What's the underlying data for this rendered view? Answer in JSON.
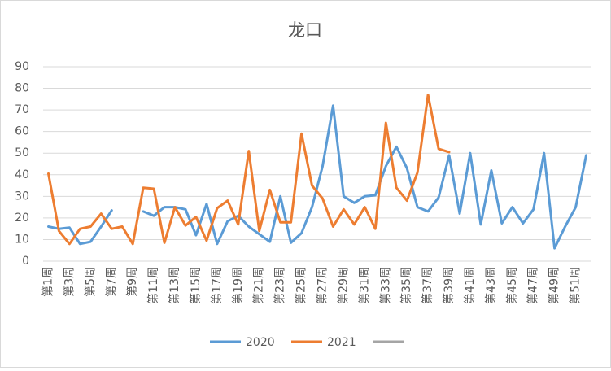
{
  "chart_data": {
    "type": "line",
    "title": "龙口",
    "categories": [
      "第1周",
      null,
      "第3周",
      null,
      "第5周",
      null,
      "第7周",
      null,
      "第9周",
      null,
      "第11周",
      null,
      "第13周",
      null,
      "第15周",
      null,
      "第17周",
      null,
      "第19周",
      null,
      "第21周",
      null,
      "第23周",
      null,
      "第25周",
      null,
      "第27周",
      null,
      "第29周",
      null,
      "第31周",
      null,
      "第33周",
      null,
      "第35周",
      null,
      "第37周",
      null,
      "第39周",
      null,
      "第41周",
      null,
      "第43周",
      null,
      "第45周",
      null,
      "第47周",
      null,
      "第49周",
      null,
      "第51周",
      null
    ],
    "series": [
      {
        "name": "2020",
        "color": "#5b9bd5",
        "values": [
          16,
          15,
          15.5,
          8,
          9,
          16,
          23.5,
          null,
          null,
          23,
          21,
          25,
          25,
          24,
          12,
          26.5,
          8,
          18.5,
          21,
          16,
          12.5,
          9,
          30,
          8.5,
          13,
          25,
          44,
          72,
          30,
          27,
          30,
          30.5,
          44,
          53,
          43,
          25,
          23,
          29.5,
          49,
          22,
          50,
          17,
          42,
          17.5,
          25,
          17.5,
          24,
          50,
          6,
          16,
          25,
          49
        ]
      },
      {
        "name": "2021",
        "color": "#ed7d31",
        "values": [
          40.5,
          14,
          8,
          15,
          16,
          22,
          15,
          16,
          8,
          34,
          33.5,
          8.5,
          25,
          16.5,
          20.5,
          9.5,
          24.5,
          28,
          17,
          51,
          14,
          33,
          18,
          18,
          59,
          35,
          29,
          16,
          24,
          17,
          25,
          15,
          64,
          34,
          28,
          41,
          77,
          52,
          50.5,
          null,
          null,
          null,
          null,
          null,
          null,
          null,
          null,
          null,
          null,
          null,
          null,
          null
        ]
      },
      {
        "color": "#a5a5a5",
        "values": [
          null,
          null,
          null,
          null,
          null,
          null,
          null,
          null,
          null,
          null,
          null,
          null,
          null,
          null,
          null,
          null,
          null,
          null,
          null,
          null,
          null,
          null,
          null,
          null,
          null,
          null,
          null,
          null,
          null,
          null,
          null,
          null,
          null,
          null,
          null,
          null,
          null,
          null,
          null,
          null,
          null,
          null,
          null,
          null,
          null,
          null,
          null,
          null,
          null,
          null,
          null,
          null
        ]
      }
    ],
    "ylim": [
      0,
      90
    ],
    "yticks": [
      0,
      10,
      20,
      30,
      40,
      50,
      60,
      70,
      80,
      90
    ],
    "grid": true
  }
}
